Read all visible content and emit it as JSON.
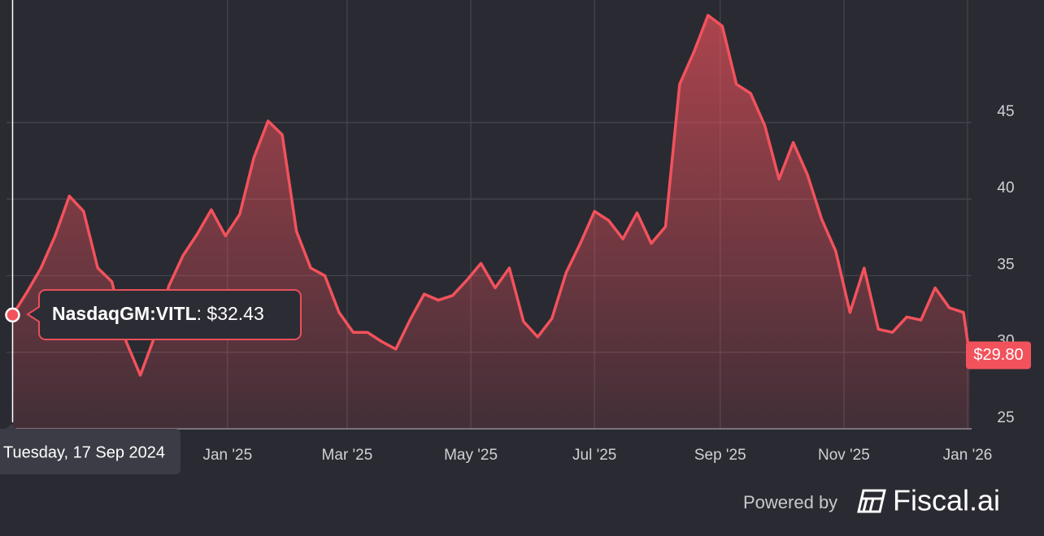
{
  "chart_data": {
    "type": "area",
    "x": [
      "2024-09-17",
      "2024-09-24",
      "2024-10-01",
      "2024-10-08",
      "2024-10-15",
      "2024-10-22",
      "2024-10-29",
      "2024-11-05",
      "2024-11-12",
      "2024-11-19",
      "2024-11-26",
      "2024-12-03",
      "2024-12-10",
      "2024-12-17",
      "2024-12-24",
      "2024-12-31",
      "2025-01-07",
      "2025-01-14",
      "2025-01-21",
      "2025-01-28",
      "2025-02-04",
      "2025-02-11",
      "2025-02-18",
      "2025-02-25",
      "2025-03-04",
      "2025-03-11",
      "2025-03-18",
      "2025-03-25",
      "2025-04-01",
      "2025-04-08",
      "2025-04-15",
      "2025-04-22",
      "2025-04-29",
      "2025-05-06",
      "2025-05-13",
      "2025-05-20",
      "2025-05-27",
      "2025-06-03",
      "2025-06-10",
      "2025-06-17",
      "2025-06-24",
      "2025-07-01",
      "2025-07-08",
      "2025-07-15",
      "2025-07-22",
      "2025-07-29",
      "2025-08-05",
      "2025-08-12",
      "2025-08-19",
      "2025-08-26",
      "2025-09-02",
      "2025-09-09",
      "2025-09-16",
      "2025-09-23",
      "2025-09-30",
      "2025-10-07",
      "2025-10-14",
      "2025-10-21",
      "2025-10-28",
      "2025-11-04",
      "2025-11-11",
      "2025-11-18",
      "2025-11-25",
      "2025-12-02",
      "2025-12-09",
      "2025-12-16",
      "2025-12-23",
      "2025-12-30",
      "2026-01-02"
    ],
    "series": [
      {
        "name": "NasdaqGM:VITL",
        "color": "#f2525c",
        "values": [
          32.43,
          33.9,
          35.5,
          37.6,
          40.2,
          39.2,
          35.5,
          34.6,
          30.7,
          28.5,
          31.0,
          34.3,
          36.3,
          37.7,
          39.3,
          37.6,
          39.0,
          42.7,
          45.1,
          44.2,
          37.9,
          35.5,
          35.0,
          32.6,
          31.3,
          31.3,
          30.7,
          30.2,
          32.1,
          33.8,
          33.4,
          33.7,
          34.7,
          35.8,
          34.2,
          35.5,
          32.0,
          31.0,
          32.2,
          35.2,
          37.1,
          39.2,
          38.6,
          37.4,
          39.1,
          37.1,
          38.2,
          47.5,
          49.6,
          52.0,
          51.3,
          47.5,
          46.9,
          44.8,
          41.3,
          43.7,
          41.6,
          38.7,
          36.6,
          32.6,
          35.5,
          31.5,
          31.3,
          32.3,
          32.1,
          34.2,
          32.9,
          32.6,
          29.8
        ]
      }
    ],
    "xlim": [
      "2024-09-14",
      "2026-01-03"
    ],
    "xticks": [
      {
        "value": "2025-01-01",
        "label": "Jan '25"
      },
      {
        "value": "2025-03-01",
        "label": "Mar '25"
      },
      {
        "value": "2025-05-01",
        "label": "May '25"
      },
      {
        "value": "2025-07-01",
        "label": "Jul '25"
      },
      {
        "value": "2025-09-01",
        "label": "Sep '25"
      },
      {
        "value": "2025-11-01",
        "label": "Nov '25"
      },
      {
        "value": "2026-01-01",
        "label": "Jan '26"
      }
    ],
    "ylim": [
      25,
      53
    ],
    "yticks": [
      25,
      30,
      35,
      40,
      45
    ],
    "grid": true,
    "last_price_label": "$29.80",
    "tooltip": {
      "date": "Tuesday, 17 Sep 2024",
      "value": ": $32.43"
    }
  },
  "footer": {
    "powered_by": "Powered by",
    "brand": "Fiscal.ai"
  }
}
